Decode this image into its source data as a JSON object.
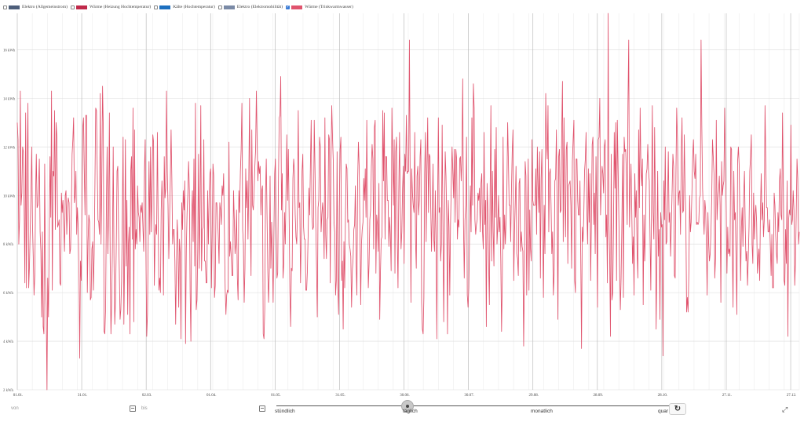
{
  "legend": [
    {
      "label": "Elektro (Allgemeinstrom)",
      "color": "#4d5e7a",
      "checked": false
    },
    {
      "label": "Wärme (Heizung Hochtemperatur)",
      "color": "#c0294a",
      "checked": false
    },
    {
      "label": "Kälte (Hochtemperatur)",
      "color": "#1d6fbf",
      "checked": false
    },
    {
      "label": "Elektro (Elektromobilität)",
      "color": "#7a8aa6",
      "checked": false
    },
    {
      "label": "Wärme (Trinkwarmwasser)",
      "color": "#e0536d",
      "checked": true
    }
  ],
  "chart_data": {
    "type": "line",
    "series_name": "Wärme (Trinkwarmwasser)",
    "color": "#e0536d",
    "ylim": [
      2,
      17.5
    ],
    "y_unit": "kWh",
    "y_ticks": [
      "2 kWh",
      "4 kWh",
      "6 kWh",
      "8 kWh",
      "10 kWh",
      "12 kWh",
      "14 kWh",
      "16 kWh"
    ],
    "x_ticks": [
      "01.01.",
      "31.01.",
      "02.03.",
      "01.04.",
      "01.05.",
      "31.05.",
      "30.06.",
      "30.07.",
      "29.08.",
      "28.09.",
      "28.10.",
      "27.11.",
      "27.12."
    ],
    "x_tick_days": [
      0,
      30,
      60,
      90,
      120,
      150,
      180,
      210,
      240,
      270,
      300,
      330,
      360
    ],
    "days": 365,
    "values": [
      13.0,
      12.3,
      8.0,
      9.0,
      14.3,
      9.6,
      10.1,
      12.0,
      11.8,
      9.5,
      6.4,
      13.4,
      6.2,
      11.1,
      13.8,
      6.2,
      7.1,
      8.6,
      10.1,
      12.0,
      8.8,
      7.5,
      5.9,
      6.7,
      9.9,
      11.7,
      9.5,
      9.6,
      10.3,
      11.5,
      8.5,
      7.7,
      5.0,
      8.5,
      4.6,
      4.3,
      11.3,
      6.6,
      5.4,
      2.0,
      6.6,
      5.0,
      8.6,
      11.6,
      9.1,
      14.3,
      6.1,
      11.0,
      10.8,
      13.5,
      8.6,
      13.0,
      12.4,
      8.7,
      8.8,
      9.0,
      6.4,
      6.3,
      10.1,
      9.3,
      9.8,
      8.7,
      7.7,
      10.0,
      10.2,
      8.4,
      9.5,
      9.9,
      9.7,
      7.6,
      7.8,
      9.3,
      11.7,
      12.3,
      13.2,
      9.7,
      10.0,
      11.0,
      8.4,
      9.5,
      8.7,
      6.9,
      3.3,
      7.3,
      6.5,
      9.6,
      12.8,
      13.2,
      11.0,
      9.2,
      13.3,
      13.3,
      6.0,
      8.1,
      9.2,
      8.9,
      5.7,
      5.8,
      7.8,
      8.1,
      6.1,
      7.6,
      10.5,
      13.6,
      13.5,
      11.1,
      9.0,
      8.9,
      8.4,
      14.2,
      8.0,
      10.6,
      14.5,
      12.7,
      4.4,
      4.3,
      5.3,
      9.5,
      12.0,
      7.6,
      9.4,
      13.4,
      7.4,
      4.3,
      5.6,
      8.0,
      12.0,
      7.4,
      4.7,
      5.7,
      7.9,
      11.0,
      11.2,
      8.6,
      6.9,
      4.9,
      5.3,
      6.5,
      9.3,
      12.4,
      4.7,
      7.4,
      12.3,
      7.1,
      9.8,
      5.1,
      8.0,
      8.7,
      4.3,
      11.0,
      11.6,
      8.2,
      13.6,
      4.8,
      12.7,
      7.8,
      8.6,
      8.0,
      10.4,
      9.3,
      9.1,
      8.1,
      9.6,
      9.3,
      9.7,
      8.7,
      7.7,
      11.0,
      12.3,
      7.5,
      4.2,
      5.1,
      8.3,
      11.4,
      8.4,
      12.0,
      8.5,
      10.3,
      12.5,
      12.2,
      6.3,
      8.2,
      8.8,
      8.4,
      12.6,
      9.0,
      6.1,
      6.6,
      6.0,
      9.4,
      10.6,
      9.5,
      5.9,
      11.6,
      9.9,
      10.3,
      14.3,
      11.0,
      9.6,
      7.4,
      8.9,
      10.7,
      12.7,
      10.7,
      8.0,
      8.6,
      8.6,
      7.3,
      4.7,
      7.0,
      9.0,
      8.1,
      5.4,
      8.2,
      7.6,
      4.1,
      9.7,
      8.6,
      10.2,
      9.4,
      10.6,
      3.9,
      7.8,
      9.3,
      10.1,
      11.4,
      10.2,
      6.1,
      4.0,
      9.2,
      10.2,
      8.1,
      11.5,
      7.1,
      13.8,
      5.3,
      5.7,
      7.8,
      11.7,
      7.0,
      9.4,
      13.7,
      6.9,
      8.6,
      8.7,
      12.3,
      7.3,
      7.3,
      6.4,
      6.4,
      10.2,
      8.0,
      10.0,
      10.9,
      11.1,
      6.2,
      8.4,
      11.3,
      10.8,
      5.8,
      6.3,
      9.7,
      9.7,
      9.1,
      8.3,
      7.2,
      9.7,
      9.4,
      8.8,
      10.4,
      10.0,
      10.9,
      8.6,
      6.2,
      5.1,
      5.9,
      6.1,
      6.0,
      12.2,
      7.5,
      8.1,
      7.5,
      6.7,
      6.7,
      10.2,
      9.0,
      7.6,
      8.0,
      9.4,
      6.6,
      5.7,
      10.2,
      9.3,
      11.0,
      11.9,
      13.8,
      8.6,
      8.0,
      5.6,
      7.0,
      11.1,
      9.5,
      10.6,
      8.2,
      10.4,
      14.0,
      9.2,
      6.7,
      12.7,
      9.6,
      9.4,
      10.1,
      11.2,
      11.9,
      14.3,
      12.2,
      10.6,
      11.4,
      10.9,
      11.2,
      9.2,
      10.2,
      10.4,
      4.3,
      4.1,
      5.3,
      10.0,
      11.5,
      9.2,
      6.9,
      5.6,
      6.9,
      10.8,
      7.0,
      8.9,
      7.6,
      5.6,
      8.4,
      10.9,
      11.5,
      8.8,
      6.6,
      6.8,
      10.6,
      13.2,
      13.3,
      14.9,
      9.4,
      10.9,
      6.6,
      7.2,
      9.3,
      8.0,
      10.4,
      12.5,
      9.8,
      11.9,
      9.3,
      6.1,
      4.6,
      7.0,
      6.9,
      10.7,
      11.5,
      11.0,
      9.2,
      8.3,
      8.0,
      9.4,
      13.5,
      9.5,
      9.7,
      6.4,
      8.4,
      11.0,
      11.7,
      8.7,
      8.2,
      8.2,
      6.1,
      6.1,
      6.9,
      8.4,
      10.3,
      9.2,
      11.3,
      13.1,
      9.1,
      8.6,
      8.7,
      13.1,
      11.1,
      8.9,
      7.1,
      5.0,
      9.5,
      9.8,
      12.4,
      12.0,
      8.5,
      9.2,
      9.7,
      9.2,
      7.4,
      13.2,
      8.4,
      7.4,
      9.0,
      9.1,
      12.5,
      12.3,
      6.4,
      11.4,
      13.7,
      12.4,
      11.4,
      8.9,
      8.5,
      5.9,
      6.5,
      11.8,
      6.2,
      5.1,
      9.6,
      11.9,
      12.4,
      6.5,
      7.3,
      4.5,
      8.1,
      6.2,
      9.2,
      11.3,
      11.1,
      8.9,
      9.0,
      8.0,
      7.8,
      7.5,
      5.4,
      6.9,
      7.4,
      8.6,
      8.8,
      10.4,
      7.2,
      5.9,
      10.6,
      12.2,
      11.2,
      8.6,
      5.5,
      8.0,
      8.6,
      8.9,
      10.7,
      9.8,
      11.1,
      9.1,
      13.1,
      9.2,
      6.2,
      7.2,
      9.0,
      9.4,
      11.2,
      12.1,
      11.5,
      7.8,
      12.8,
      13.1,
      6.8,
      9.2,
      8.8,
      7.7,
      10.5,
      4.9,
      6.9,
      8.2,
      8.3,
      13.5,
      10.6,
      13.4,
      8.2,
      11.6,
      11.6,
      9.8,
      9.8,
      7.9,
      9.1,
      8.4,
      6.9,
      13.6,
      11.5,
      9.6,
      12.3,
      6.8,
      11.8,
      12.4,
      8.4,
      6.2,
      10.1,
      12.6,
      9.6,
      7.8,
      8.5,
      10.3,
      11.2,
      7.2,
      11.7,
      11.0,
      13.3,
      10.9,
      11.0,
      11.0,
      16.4,
      10.6,
      5.6,
      11.1,
      10.1,
      9.6,
      9.3,
      12.6,
      8.2,
      7.0,
      10.8,
      11.2,
      9.2,
      9.8,
      11.6,
      12.3,
      5.6,
      4.5,
      4.3,
      5.8,
      10.9,
      12.6,
      8.1,
      11.1,
      13.2,
      9.3,
      11.7,
      11.6,
      9.5,
      7.7,
      9.3,
      11.3,
      8.2,
      7.7,
      10.2,
      8.1,
      4.1,
      9.5,
      13.2,
      9.3,
      9.5,
      7.3,
      8.0,
      12.9,
      8.9,
      4.8,
      8.6,
      11.8,
      10.8,
      9.0,
      4.3,
      9.8,
      8.7,
      5.9,
      8.8,
      10.5,
      12.0,
      11.0,
      9.9,
      11.9,
      8.9,
      11.9,
      11.5,
      8.2,
      9.0,
      8.7,
      11.5,
      11.6,
      10.6,
      11.7,
      14.8,
      8.8,
      6.6,
      9.0,
      9.6,
      12.4,
      5.9,
      5.4,
      6.2,
      8.5,
      10.4,
      8.5,
      13.2,
      9.6,
      14.6,
      13.6,
      9.0,
      8.4,
      8.8,
      9.0,
      10.1,
      9.8,
      10.3,
      8.5,
      10.5,
      10.9,
      8.5,
      7.8,
      12.6,
      8.8,
      9.8,
      4.6,
      10.5,
      9.4,
      7.2,
      5.5,
      10.2,
      13.7,
      7.3,
      11.0,
      8.5,
      7.1,
      11.9,
      9.1,
      12.8,
      8.0,
      8.7,
      10.0,
      8.5,
      9.1,
      7.3,
      4.4,
      6.6,
      12.4,
      7.8,
      9.2,
      8.0,
      9.0,
      10.3,
      13.0,
      11.4,
      9.6,
      9.6,
      8.1,
      10.2,
      11.8,
      12.7,
      6.5,
      8.5,
      9.7,
      11.2,
      7.6,
      7.4,
      6.7,
      10.5,
      10.7,
      7.7,
      8.5,
      7.9,
      7.7,
      3.8,
      6.7,
      11.4,
      10.8,
      5.9,
      8.7,
      11.5,
      6.1,
      9.4,
      7.8,
      7.3,
      12.3,
      9.8,
      9.6,
      9.6,
      9.6,
      11.1,
      8.4,
      12.0,
      10.4,
      9.3,
      11.8,
      6.6,
      10.7,
      11.9,
      8.8,
      5.8,
      9.6,
      7.6,
      14.2,
      12.2,
      11.5,
      13.7,
      8.5,
      10.9,
      11.1,
      9.6,
      7.6,
      8.5,
      5.9,
      6.7,
      10.6,
      10.7,
      12.7,
      9.3,
      4.9,
      11.6,
      11.9,
      9.3,
      9.4,
      12.6,
      14.7,
      8.1,
      13.2,
      10.0,
      8.3,
      11.9,
      12.2,
      7.2,
      10.4,
      10.5,
      10.6,
      9.6,
      7.0,
      11.4,
      12.3,
      13.1,
      6.5,
      6.0,
      11.5,
      11.5,
      9.8,
      9.2,
      9.2,
      10.6,
      7.5,
      3.7,
      8.7,
      8.1,
      9.2,
      11.0,
      11.5,
      12.6,
      9.4,
      8.0,
      11.1,
      8.9,
      10.9,
      6.5,
      9.0,
      12.1,
      12.4,
      8.8,
      10.1,
      7.6,
      11.6,
      9.1,
      5.4,
      12.3,
      12.4,
      14.0,
      9.2,
      10.3,
      11.2,
      10.9,
      10.1,
      12.0,
      12.3,
      8.3,
      9.2,
      6.4,
      17.5,
      8.9,
      7.4,
      4.2,
      11.7,
      5.7,
      6.0,
      8.7,
      12.6,
      10.3,
      13.0,
      6.5,
      13.1,
      11.2,
      9.2,
      7.2,
      5.3,
      6.6,
      8.9,
      11.7,
      5.8,
      12.4,
      11.8,
      11.9,
      10.8,
      8.8,
      13.8,
      16.4,
      8.7,
      10.1,
      11.3,
      9.4,
      7.2,
      8.3,
      5.9,
      10.9,
      9.1,
      10.2,
      7.7,
      6.6,
      12.7,
      9.5,
      13.6,
      11.2,
      10.4,
      11.5,
      5.5,
      9.2,
      7.3,
      8.6,
      10.9,
      11.1,
      12.1,
      11.0,
      10.6,
      8.3,
      6.1,
      9.9,
      13.7,
      9.3,
      8.2,
      12.8,
      9.7,
      4.5,
      7.3,
      11.0,
      7.5,
      8.6,
      4.9,
      9.3,
      8.7,
      8.8,
      3.4,
      10.6,
      9.0,
      12.0,
      8.0,
      8.1,
      9.8,
      11.8,
      8.9,
      9.3,
      7.5,
      8.8,
      10.2,
      11.7,
      11.2,
      6.7,
      6.6,
      10.9,
      13.6,
      12.3,
      9.6,
      10.1,
      10.2,
      8.4,
      11.7,
      13.2,
      9.3,
      9.4,
      12.5,
      10.2,
      9.2,
      5.2,
      5.8,
      5.2,
      6.9,
      10.0,
      8.5,
      8.9,
      10.1,
      11.6,
      12.3,
      11.0,
      10.7,
      11.7,
      8.8,
      8.9,
      8.8,
      8.9,
      9.9,
      10.0,
      16.4,
      12.8,
      10.3,
      9.3,
      8.4,
      9.8,
      9.4,
      8.0,
      5.9,
      9.3,
      8.0,
      7.3,
      7.6,
      8.5,
      9.9,
      12.3,
      11.6,
      10.9,
      6.6,
      7.4,
      13.1,
      9.0,
      9.9,
      10.2,
      10.8,
      9.6,
      5.6,
      11.4,
      10.0,
      10.4,
      10.6,
      13.6,
      11.4,
      9.3,
      6.8,
      8.7,
      7.6,
      7.8,
      7.5,
      12.0,
      11.9,
      8.0,
      5.4,
      11.0,
      9.0,
      9.3,
      7.3,
      5.1,
      11.4,
      12.0,
      11.3,
      9.1,
      6.5,
      8.7,
      9.5,
      7.9,
      10.0,
      11.0,
      8.7,
      7.3,
      7.7,
      6.3,
      7.4,
      8.7,
      11.0,
      11.6,
      12.5,
      8.0,
      7.2,
      10.1,
      8.2,
      9.2,
      9.6,
      8.9,
      6.8,
      7.4,
      7.8,
      6.5,
      9.4,
      10.9,
      9.0,
      9.7,
      8.3,
      9.0,
      13.7,
      11.4,
      9.5,
      9.5,
      8.5,
      8.5,
      9.0,
      7.9,
      6.7,
      8.4,
      6.2,
      6.2,
      10.1,
      9.6,
      8.4,
      7.6,
      7.2,
      9.3,
      8.5,
      10.6,
      11.1,
      9.2,
      9.0,
      13.4,
      10.3,
      6.5,
      6.3,
      8.6,
      7.2,
      10.6,
      4.2,
      9.0,
      9.4,
      9.2,
      12.9,
      8.8,
      9.0,
      10.2,
      9.4,
      6.3,
      7.2,
      9.3,
      11.5,
      10.7,
      8.0,
      8.5
    ]
  },
  "controls": {
    "from_placeholder": "von",
    "to_placeholder": "bis",
    "aggregation": [
      "stündlich",
      "täglich",
      "monatlich",
      "quar"
    ],
    "aggregation_level": 0.33
  },
  "icons": {
    "calendar": "calendar-icon",
    "reset": "reset-icon",
    "expand": "expand-icon"
  }
}
